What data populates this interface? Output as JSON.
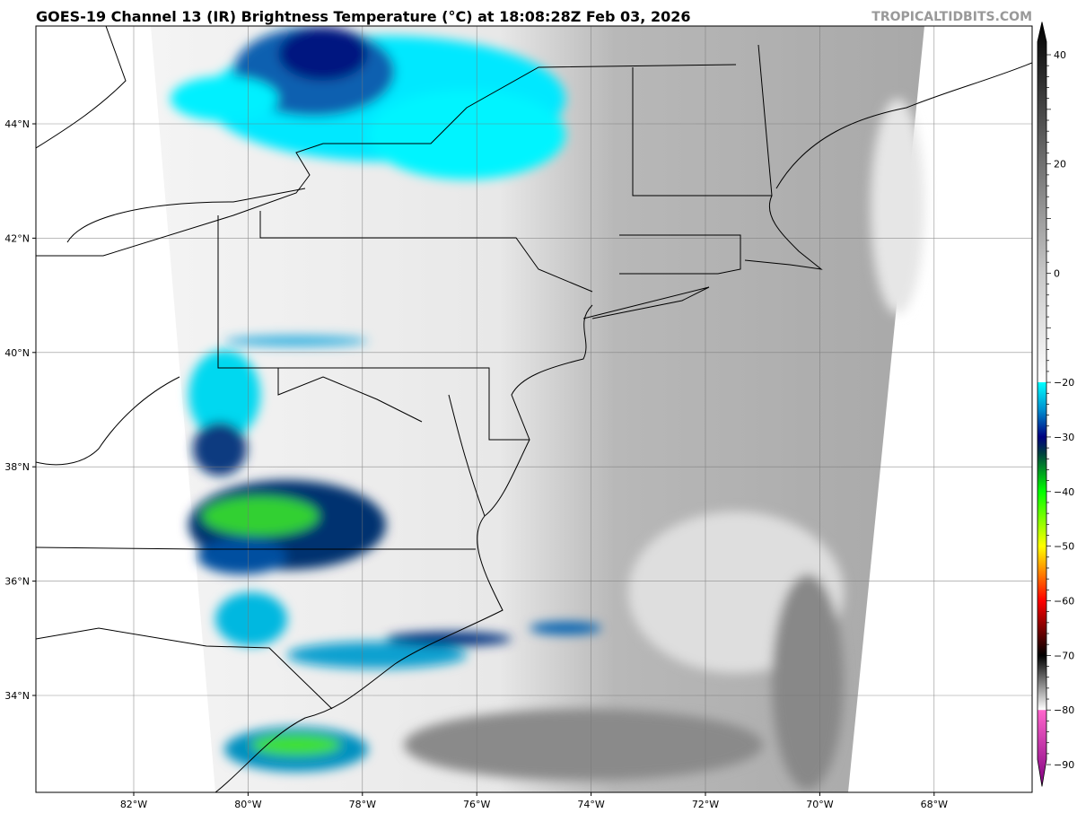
{
  "header": {
    "title": "GOES-19 Channel 13 (IR) Brightness Temperature (°C) at 18:08:28Z Feb 03, 2026",
    "watermark": "TROPICALTIDBITS.COM"
  },
  "map": {
    "lon_ticks": [
      {
        "lon": -82,
        "label": "82°W"
      },
      {
        "lon": -80,
        "label": "80°W"
      },
      {
        "lon": -78,
        "label": "78°W"
      },
      {
        "lon": -76,
        "label": "76°W"
      },
      {
        "lon": -74,
        "label": "74°W"
      },
      {
        "lon": -72,
        "label": "72°W"
      },
      {
        "lon": -70,
        "label": "70°W"
      },
      {
        "lon": -68,
        "label": "68°W"
      }
    ],
    "lat_ticks": [
      {
        "lat": 44,
        "label": "44°N"
      },
      {
        "lat": 42,
        "label": "42°N"
      },
      {
        "lat": 40,
        "label": "40°N"
      },
      {
        "lat": 38,
        "label": "38°N"
      },
      {
        "lat": 36,
        "label": "36°N"
      },
      {
        "lat": 34,
        "label": "34°N"
      }
    ],
    "extent": {
      "lon": [
        -83.7,
        -66.3
      ],
      "lat": [
        32.3,
        45.7
      ]
    }
  },
  "colorbar": {
    "range": [
      -94,
      46
    ],
    "ticks": [
      "40",
      "20",
      "0",
      "−20",
      "−30",
      "−40",
      "−50",
      "−60",
      "−70",
      "−80",
      "−90"
    ],
    "tick_values": [
      40,
      20,
      0,
      -20,
      -30,
      -40,
      -50,
      -60,
      -70,
      -80,
      -90
    ],
    "stops": [
      {
        "v": 46,
        "c": "#000000"
      },
      {
        "v": 0,
        "c": "#c8c8c8"
      },
      {
        "v": -20,
        "c": "#ffffff"
      },
      {
        "v": -20.01,
        "c": "#00ffff"
      },
      {
        "v": -25,
        "c": "#0090d0"
      },
      {
        "v": -30,
        "c": "#000080"
      },
      {
        "v": -33,
        "c": "#004040"
      },
      {
        "v": -40,
        "c": "#00ff00"
      },
      {
        "v": -50,
        "c": "#ffff00"
      },
      {
        "v": -55,
        "c": "#ff8000"
      },
      {
        "v": -60,
        "c": "#ff0000"
      },
      {
        "v": -70,
        "c": "#000000"
      },
      {
        "v": -80,
        "c": "#ffffff"
      },
      {
        "v": -80.01,
        "c": "#ff66cc"
      },
      {
        "v": -94,
        "c": "#800080"
      }
    ]
  }
}
